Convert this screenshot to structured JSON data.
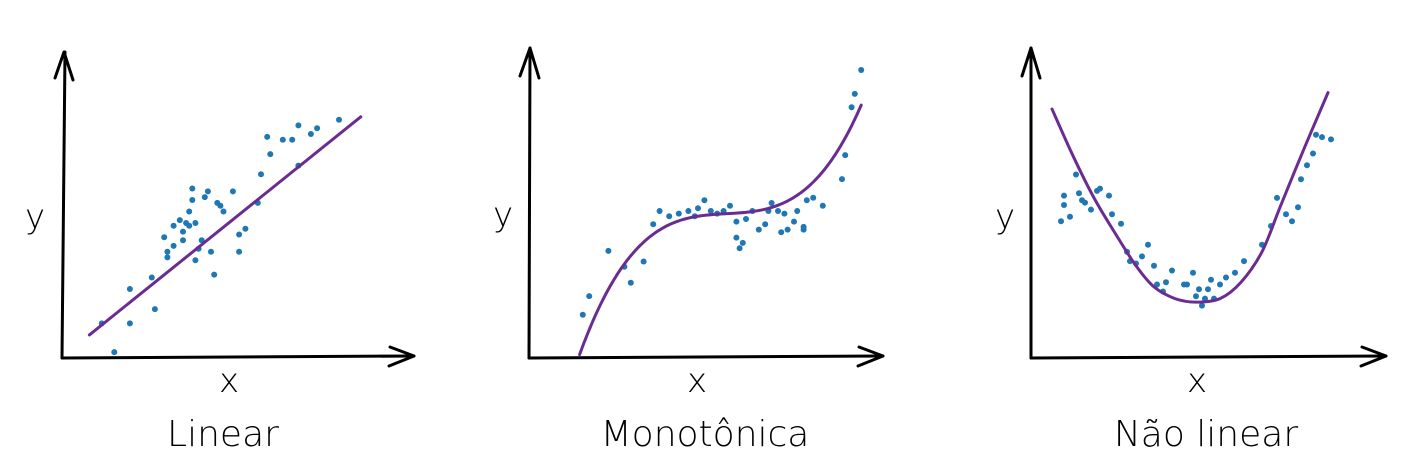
{
  "colors": {
    "points": "#1f77b4",
    "curve": "#6a2c91",
    "axes": "#000000"
  },
  "chart_data": [
    {
      "type": "scatter",
      "title": "Linear",
      "xlabel": "x",
      "ylabel": "y",
      "relationship": "linear",
      "xlim": [
        0,
        10
      ],
      "ylim": [
        0,
        10
      ],
      "fit_curve": "linear",
      "points": [
        [
          0.7,
          1.1
        ],
        [
          1.1,
          0.1
        ],
        [
          1.6,
          1.1
        ],
        [
          1.6,
          2.3
        ],
        [
          2.3,
          2.7
        ],
        [
          2.4,
          1.6
        ],
        [
          2.7,
          4.1
        ],
        [
          2.8,
          3.4
        ],
        [
          2.8,
          3.6
        ],
        [
          3.0,
          3.8
        ],
        [
          3.0,
          4.5
        ],
        [
          3.2,
          4.7
        ],
        [
          3.3,
          4.3
        ],
        [
          3.3,
          4.0
        ],
        [
          3.4,
          4.6
        ],
        [
          3.5,
          5.0
        ],
        [
          3.5,
          4.5
        ],
        [
          3.6,
          5.4
        ],
        [
          3.6,
          5.8
        ],
        [
          3.7,
          4.6
        ],
        [
          3.7,
          3.3
        ],
        [
          3.8,
          3.7
        ],
        [
          3.9,
          4.0
        ],
        [
          4.0,
          5.5
        ],
        [
          4.1,
          5.7
        ],
        [
          4.2,
          3.6
        ],
        [
          4.3,
          2.8
        ],
        [
          4.4,
          5.3
        ],
        [
          4.5,
          5.2
        ],
        [
          4.6,
          5.0
        ],
        [
          4.9,
          5.7
        ],
        [
          5.1,
          3.6
        ],
        [
          5.1,
          4.2
        ],
        [
          5.3,
          4.4
        ],
        [
          5.7,
          5.3
        ],
        [
          5.8,
          6.3
        ],
        [
          6.0,
          7.6
        ],
        [
          6.1,
          7.0
        ],
        [
          6.5,
          7.5
        ],
        [
          6.8,
          7.5
        ],
        [
          7.0,
          6.6
        ],
        [
          7.0,
          8.0
        ],
        [
          7.4,
          7.7
        ],
        [
          7.6,
          7.9
        ],
        [
          8.3,
          8.2
        ]
      ]
    },
    {
      "type": "scatter",
      "title": "Monotônica",
      "xlabel": "x",
      "ylabel": "y",
      "relationship": "monotonic",
      "xlim": [
        0,
        10
      ],
      "ylim": [
        0,
        10
      ],
      "fit_curve": "cubic",
      "points": [
        [
          0.4,
          0.8
        ],
        [
          0.6,
          1.5
        ],
        [
          1.2,
          3.2
        ],
        [
          1.7,
          2.6
        ],
        [
          1.9,
          2.0
        ],
        [
          2.3,
          2.8
        ],
        [
          2.6,
          4.2
        ],
        [
          2.8,
          4.7
        ],
        [
          3.1,
          4.5
        ],
        [
          3.4,
          4.6
        ],
        [
          3.7,
          4.7
        ],
        [
          3.9,
          4.5
        ],
        [
          4.0,
          4.8
        ],
        [
          4.2,
          5.1
        ],
        [
          4.4,
          4.7
        ],
        [
          4.6,
          4.6
        ],
        [
          4.8,
          4.7
        ],
        [
          5.0,
          4.9
        ],
        [
          5.2,
          4.3
        ],
        [
          5.2,
          3.7
        ],
        [
          5.3,
          3.3
        ],
        [
          5.4,
          3.5
        ],
        [
          5.5,
          4.4
        ],
        [
          5.7,
          4.7
        ],
        [
          5.9,
          4.0
        ],
        [
          6.1,
          4.2
        ],
        [
          6.2,
          4.7
        ],
        [
          6.3,
          5.0
        ],
        [
          6.5,
          4.7
        ],
        [
          6.6,
          3.9
        ],
        [
          6.7,
          4.6
        ],
        [
          6.8,
          4.0
        ],
        [
          7.0,
          4.3
        ],
        [
          7.1,
          4.7
        ],
        [
          7.3,
          4.0
        ],
        [
          7.3,
          4.1
        ],
        [
          7.4,
          5.1
        ],
        [
          7.6,
          5.2
        ],
        [
          7.9,
          4.9
        ],
        [
          8.5,
          5.9
        ],
        [
          8.6,
          6.8
        ],
        [
          8.8,
          8.6
        ],
        [
          8.9,
          9.1
        ],
        [
          9.1,
          10.0
        ]
      ]
    },
    {
      "type": "scatter",
      "title": "Não linear",
      "xlabel": "x",
      "ylabel": "y",
      "relationship": "non-linear",
      "xlim": [
        0,
        10
      ],
      "ylim": [
        0,
        10
      ],
      "fit_curve": "U-shaped",
      "points": [
        [
          0.5,
          4.9
        ],
        [
          0.6,
          6.0
        ],
        [
          0.6,
          5.6
        ],
        [
          0.8,
          5.1
        ],
        [
          1.0,
          6.9
        ],
        [
          1.1,
          6.1
        ],
        [
          1.2,
          5.8
        ],
        [
          1.3,
          5.7
        ],
        [
          1.5,
          5.4
        ],
        [
          1.7,
          6.2
        ],
        [
          1.8,
          6.3
        ],
        [
          2.1,
          6.0
        ],
        [
          2.2,
          5.2
        ],
        [
          2.5,
          4.8
        ],
        [
          2.7,
          3.6
        ],
        [
          2.8,
          3.2
        ],
        [
          3.0,
          3.1
        ],
        [
          3.2,
          3.4
        ],
        [
          3.4,
          3.9
        ],
        [
          3.6,
          3.0
        ],
        [
          3.7,
          2.2
        ],
        [
          3.9,
          1.9
        ],
        [
          4.0,
          2.3
        ],
        [
          4.2,
          2.8
        ],
        [
          4.6,
          2.2
        ],
        [
          4.7,
          2.2
        ],
        [
          4.9,
          2.7
        ],
        [
          5.0,
          1.7
        ],
        [
          5.1,
          2.0
        ],
        [
          5.2,
          1.3
        ],
        [
          5.3,
          1.6
        ],
        [
          5.4,
          2.0
        ],
        [
          5.5,
          2.4
        ],
        [
          5.6,
          1.6
        ],
        [
          5.8,
          2.2
        ],
        [
          6.0,
          2.5
        ],
        [
          6.3,
          2.7
        ],
        [
          6.6,
          3.2
        ],
        [
          7.2,
          3.9
        ],
        [
          7.5,
          4.7
        ],
        [
          7.7,
          5.9
        ],
        [
          8.0,
          5.2
        ],
        [
          8.2,
          4.9
        ],
        [
          8.4,
          5.5
        ],
        [
          8.5,
          6.7
        ],
        [
          8.7,
          7.3
        ],
        [
          8.9,
          7.8
        ],
        [
          9.0,
          8.6
        ],
        [
          9.2,
          8.5
        ],
        [
          9.5,
          8.4
        ]
      ]
    }
  ]
}
